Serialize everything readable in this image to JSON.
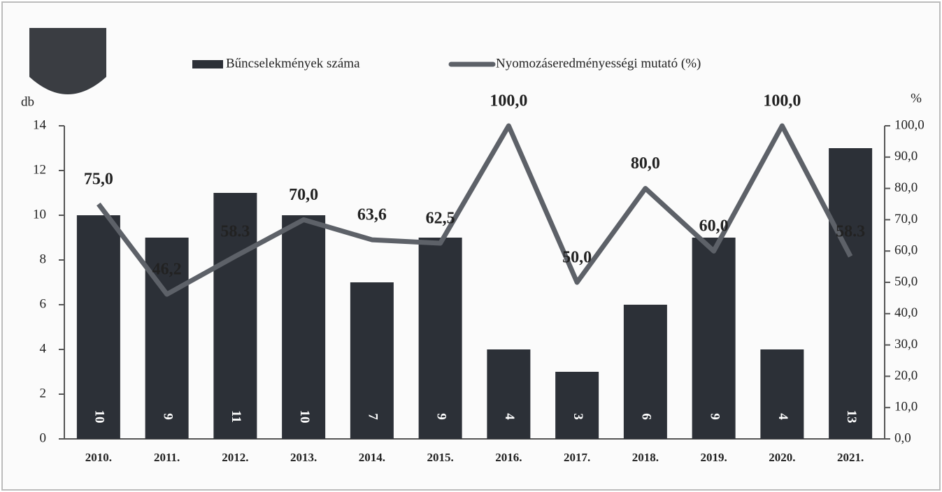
{
  "chart_data": {
    "type": "bar",
    "categories": [
      "2010.",
      "2011.",
      "2012.",
      "2013.",
      "2014.",
      "2015.",
      "2016.",
      "2017.",
      "2018.",
      "2019.",
      "2020.",
      "2021."
    ],
    "series": [
      {
        "name": "Bűncselekmények száma",
        "type": "bar",
        "color": "#2c3037",
        "values": [
          10,
          9,
          11,
          10,
          7,
          9,
          4,
          3,
          6,
          9,
          4,
          13
        ]
      },
      {
        "name": "Nyomozáseredményességi mutató (%)",
        "type": "line",
        "axis": "y2",
        "color": "#5d6168",
        "values": [
          75.0,
          46.2,
          58.3,
          70.0,
          63.6,
          62.5,
          100.0,
          50.0,
          80.0,
          60.0,
          100.0,
          58.3
        ],
        "value_labels": [
          "75,0",
          "46,2",
          "58.3",
          "70,0",
          "63,6",
          "62,5",
          "100,0",
          "50,0",
          "80,0",
          "60,0",
          "100,0",
          "58.3"
        ]
      }
    ],
    "ylabel": "db",
    "y2label": "%",
    "ylim": [
      0,
      14
    ],
    "yticks": [
      0,
      2,
      4,
      6,
      8,
      10,
      12,
      14
    ],
    "y2lim": [
      0,
      100
    ],
    "y2ticks": [
      {
        "value": 0,
        "label": "0,0"
      },
      {
        "value": 10,
        "label": "10,0"
      },
      {
        "value": 20,
        "label": "20,0"
      },
      {
        "value": 30,
        "label": "30,0"
      },
      {
        "value": 40,
        "label": "40,0"
      },
      {
        "value": 50,
        "label": "50,0"
      },
      {
        "value": 60,
        "label": "60,0"
      },
      {
        "value": 70,
        "label": "70,0"
      },
      {
        "value": 80,
        "label": "80,0"
      },
      {
        "value": 90,
        "label": "90,0"
      },
      {
        "value": 100,
        "label": "100,0"
      }
    ],
    "legend": "top"
  }
}
